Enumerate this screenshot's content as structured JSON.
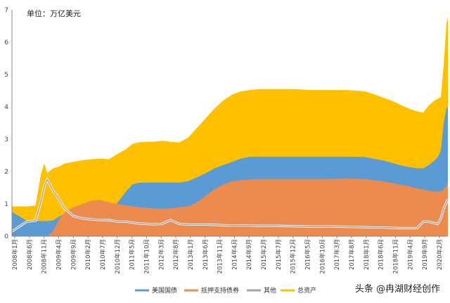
{
  "unit_label": "单位：万亿美元",
  "watermark": "头条 @冉湖财经创作",
  "chart_data": {
    "type": "area",
    "title": "",
    "ylim": [
      0,
      7
    ],
    "yticks": [
      0,
      1,
      2,
      3,
      4,
      5,
      6,
      7
    ],
    "grid": false,
    "legend_placement": "bottom",
    "x_tick_labels": [
      "2008年1月",
      "2008年6月",
      "2008年11月",
      "2009年4月",
      "2009年9月",
      "2010年2月",
      "2010年7月",
      "2010年12月",
      "2011年5月",
      "2011年10月",
      "2012年3月",
      "2012年8月",
      "2013年1月",
      "2013年6月",
      "2013年11月",
      "2014年4月",
      "2014年9月",
      "2015年2月",
      "2015年7月",
      "2015年12月",
      "2016年5月",
      "2016年10月",
      "2017年3月",
      "2017年8月",
      "2018年1月",
      "2018年6月",
      "2018年11月",
      "2019年4月",
      "2019年9月",
      "2020年2月"
    ],
    "x": [
      2008.0,
      2008.42,
      2008.67,
      2008.83,
      2008.92,
      2009.0,
      2009.17,
      2009.33,
      2009.5,
      2009.75,
      2010.0,
      2010.25,
      2010.5,
      2010.75,
      2011.0,
      2011.25,
      2011.42,
      2011.58,
      2011.83,
      2012.0,
      2012.25,
      2012.5,
      2012.75,
      2013.0,
      2013.25,
      2013.5,
      2013.75,
      2014.0,
      2014.25,
      2014.5,
      2014.75,
      2015.0,
      2015.5,
      2016.0,
      2016.5,
      2017.0,
      2017.5,
      2018.0,
      2018.25,
      2018.5,
      2018.75,
      2019.0,
      2019.25,
      2019.5,
      2019.67,
      2019.83,
      2020.0,
      2020.08,
      2020.17,
      2020.25,
      2020.33,
      2020.37
    ],
    "series": [
      {
        "name": "美国国债",
        "color": "#5b9bd5",
        "values": [
          0.75,
          0.48,
          0.47,
          0.47,
          0.47,
          0.47,
          0.49,
          0.6,
          0.7,
          0.77,
          0.78,
          0.78,
          0.78,
          0.8,
          1.05,
          1.4,
          1.6,
          1.65,
          1.66,
          1.66,
          1.66,
          1.66,
          1.66,
          1.7,
          1.82,
          1.95,
          2.1,
          2.2,
          2.3,
          2.4,
          2.46,
          2.46,
          2.46,
          2.46,
          2.46,
          2.46,
          2.46,
          2.45,
          2.4,
          2.35,
          2.28,
          2.2,
          2.14,
          2.1,
          2.1,
          2.2,
          2.35,
          2.45,
          2.65,
          3.5,
          3.95,
          4.02
        ]
      },
      {
        "name": "抵押支持债券",
        "color": "#ed8b4f",
        "values": [
          0,
          0,
          0,
          0,
          0,
          0,
          0.15,
          0.5,
          0.75,
          0.9,
          1.0,
          1.1,
          1.12,
          1.05,
          1.0,
          0.95,
          0.92,
          0.9,
          0.88,
          0.86,
          0.85,
          0.86,
          0.9,
          0.92,
          1.05,
          1.25,
          1.45,
          1.6,
          1.7,
          1.73,
          1.75,
          1.77,
          1.77,
          1.77,
          1.77,
          1.77,
          1.78,
          1.77,
          1.73,
          1.7,
          1.65,
          1.6,
          1.55,
          1.48,
          1.45,
          1.4,
          1.38,
          1.38,
          1.38,
          1.45,
          1.55,
          1.62
        ]
      },
      {
        "name": "其他",
        "color": "#a5a5a5",
        "values": [
          0.15,
          0.45,
          0.48,
          1.1,
          1.55,
          1.75,
          1.4,
          1.15,
          0.85,
          0.62,
          0.55,
          0.52,
          0.5,
          0.5,
          0.45,
          0.45,
          0.42,
          0.4,
          0.38,
          0.37,
          0.38,
          0.5,
          0.38,
          0.36,
          0.36,
          0.36,
          0.35,
          0.34,
          0.33,
          0.33,
          0.33,
          0.32,
          0.32,
          0.31,
          0.3,
          0.3,
          0.29,
          0.28,
          0.27,
          0.27,
          0.26,
          0.25,
          0.25,
          0.25,
          0.45,
          0.45,
          0.4,
          0.38,
          0.55,
          0.85,
          1.05,
          1.15
        ]
      },
      {
        "name": "总资产",
        "color": "#ffc000",
        "values": [
          0.92,
          0.92,
          0.95,
          1.95,
          2.25,
          1.95,
          2.1,
          2.15,
          2.25,
          2.3,
          2.35,
          2.38,
          2.4,
          2.38,
          2.55,
          2.7,
          2.85,
          2.9,
          2.92,
          2.92,
          2.95,
          2.92,
          2.9,
          3.05,
          3.35,
          3.65,
          3.95,
          4.2,
          4.38,
          4.48,
          4.52,
          4.55,
          4.55,
          4.55,
          4.52,
          4.52,
          4.52,
          4.48,
          4.4,
          4.3,
          4.2,
          4.08,
          3.95,
          3.86,
          3.82,
          4.05,
          4.2,
          4.25,
          4.3,
          5.3,
          6.6,
          6.75
        ]
      }
    ]
  }
}
